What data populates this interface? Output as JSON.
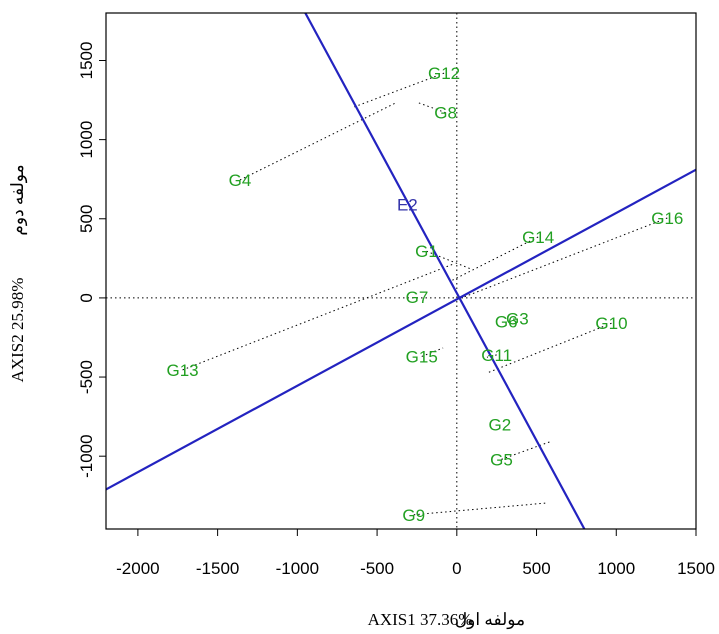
{
  "chart_data": {
    "type": "scatter",
    "title": "",
    "xlabel": "AXIS1 37.36%",
    "xlabel_extra": "مولفه اول",
    "ylabel": "AXIS2 25.98%",
    "ylabel_extra": "مولفه دوم",
    "xlim": [
      -2200,
      1500
    ],
    "ylim": [
      -1460,
      1800
    ],
    "xticks": [
      -2000,
      -1500,
      -1000,
      -500,
      0,
      500,
      1000,
      1500
    ],
    "yticks": [
      -1000,
      -500,
      0,
      500,
      1000,
      1500
    ],
    "xtick_labels": [
      "-2000",
      "-1500",
      "-1000",
      "-500",
      "0",
      "500",
      "1000",
      "1500"
    ],
    "ytick_labels": [
      "-1000",
      "-500",
      "0",
      "500",
      "1000",
      "1500"
    ],
    "grid": false,
    "reference_lines": {
      "x": 0,
      "y": 0,
      "style": "dotted"
    },
    "colors": {
      "genotype": "#22a022",
      "environment": "#3333aa",
      "axis_line": "#2323c0",
      "projection": "#000000"
    },
    "points": [
      {
        "label": "G1",
        "x": -190,
        "y": 295,
        "group": "genotype",
        "foot": [
          93,
          181
        ]
      },
      {
        "label": "G2",
        "x": 270,
        "y": -800,
        "group": "genotype"
      },
      {
        "label": "G3",
        "x": 380,
        "y": -130,
        "group": "genotype"
      },
      {
        "label": "G4",
        "x": -1360,
        "y": 745,
        "group": "genotype",
        "foot": [
          -383,
          1232
        ]
      },
      {
        "label": "G5",
        "x": 280,
        "y": -1020,
        "group": "genotype",
        "foot": [
          595,
          -905
        ]
      },
      {
        "label": "G6",
        "x": 310,
        "y": -150,
        "group": "genotype"
      },
      {
        "label": "G7",
        "x": -250,
        "y": 5,
        "group": "genotype"
      },
      {
        "label": "G8",
        "x": -70,
        "y": 1170,
        "group": "genotype",
        "foot": [
          -252,
          1237
        ]
      },
      {
        "label": "G9",
        "x": -270,
        "y": -1370,
        "group": "genotype",
        "foot": [
          571,
          -1295
        ]
      },
      {
        "label": "G10",
        "x": 970,
        "y": -160,
        "group": "genotype",
        "foot": [
          188,
          -475
        ]
      },
      {
        "label": "G11",
        "x": 250,
        "y": -360,
        "group": "genotype",
        "foot": [
          189,
          -375
        ]
      },
      {
        "label": "G12",
        "x": -80,
        "y": 1420,
        "group": "genotype",
        "foot": [
          -643,
          1207
        ]
      },
      {
        "label": "G13",
        "x": -1720,
        "y": -455,
        "group": "genotype",
        "foot": [
          -27,
          212
        ]
      },
      {
        "label": "G14",
        "x": 510,
        "y": 385,
        "group": "genotype",
        "foot": [
          -43,
          104
        ]
      },
      {
        "label": "G15",
        "x": -220,
        "y": -370,
        "group": "genotype",
        "foot": [
          -86,
          -316
        ]
      },
      {
        "label": "G16",
        "x": 1320,
        "y": 505,
        "group": "genotype",
        "foot": [
          30,
          0
        ]
      },
      {
        "label": "E2",
        "x": -310,
        "y": 590,
        "group": "environment"
      }
    ],
    "lines": [
      {
        "name": "",
        "from": [
          -2200,
          -1210
        ],
        "to": [
          1500,
          810
        ],
        "color": "#2323c0"
      },
      {
        "name": "",
        "from": [
          -950,
          1800
        ],
        "to": [
          800,
          -1460
        ],
        "color": "#2323c0"
      }
    ]
  }
}
